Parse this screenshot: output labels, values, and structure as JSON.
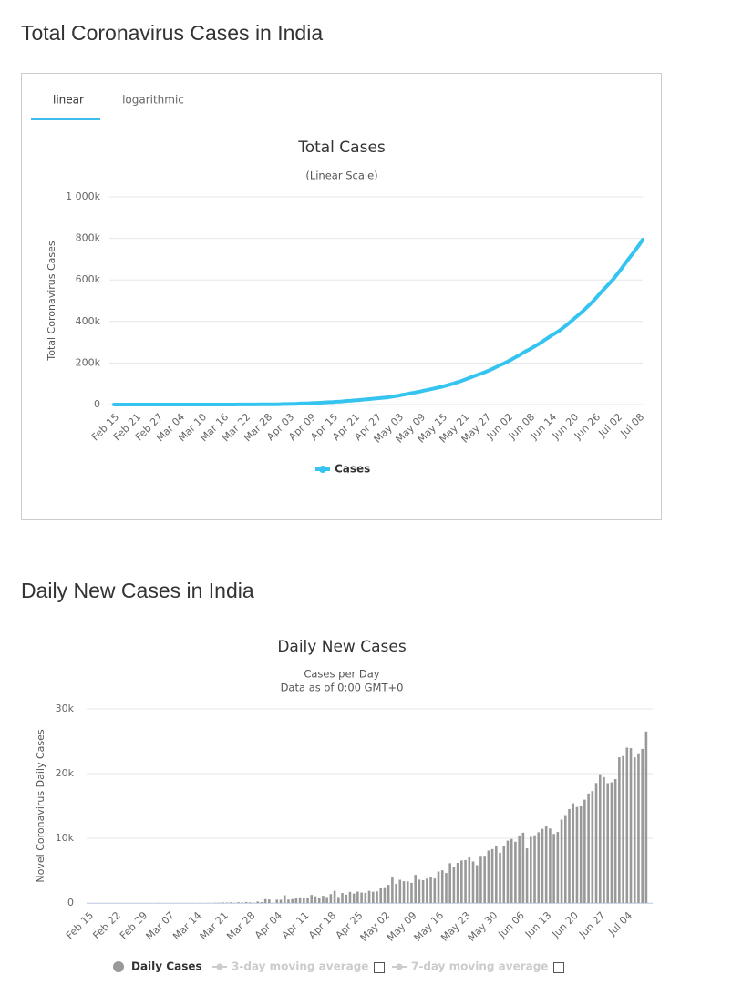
{
  "headings": [
    "Total Coronavirus Cases in India",
    "Daily New Cases in India"
  ],
  "tabs": [
    "linear",
    "logarithmic"
  ],
  "chart_data": [
    {
      "type": "line",
      "title": "Total Cases",
      "subtitle": "(Linear Scale)",
      "y_label": "Total Coronavirus Cases",
      "categories": [
        "Feb 15",
        null,
        null,
        null,
        null,
        null,
        "Feb 21",
        null,
        null,
        null,
        null,
        null,
        "Feb 27",
        null,
        null,
        null,
        null,
        null,
        "Mar 04",
        null,
        null,
        null,
        null,
        null,
        "Mar 10",
        null,
        null,
        null,
        null,
        null,
        "Mar 16",
        null,
        null,
        null,
        null,
        null,
        "Mar 22",
        null,
        null,
        null,
        null,
        null,
        "Mar 28",
        null,
        null,
        null,
        null,
        null,
        "Apr 03",
        null,
        null,
        null,
        null,
        null,
        "Apr 09",
        null,
        null,
        null,
        null,
        null,
        "Apr 15",
        null,
        null,
        null,
        null,
        null,
        "Apr 21",
        null,
        null,
        null,
        null,
        null,
        "Apr 27",
        null,
        null,
        null,
        null,
        null,
        "May 03",
        null,
        null,
        null,
        null,
        null,
        "May 09",
        null,
        null,
        null,
        null,
        null,
        "May 15",
        null,
        null,
        null,
        null,
        null,
        "May 21",
        null,
        null,
        null,
        null,
        null,
        "May 27",
        null,
        null,
        null,
        null,
        null,
        "Jun 02",
        null,
        null,
        null,
        null,
        null,
        "Jun 08",
        null,
        null,
        null,
        null,
        null,
        "Jun 14",
        null,
        null,
        null,
        null,
        null,
        "Jun 20",
        null,
        null,
        null,
        null,
        null,
        "Jun 26",
        null,
        null,
        null,
        null,
        null,
        "Jul 02",
        null,
        null,
        null,
        null,
        null,
        "Jul 08",
        null
      ],
      "series": [
        {
          "name": "Cases",
          "color": "#35c4f0",
          "values": [
            3,
            3,
            3,
            3,
            3,
            3,
            3,
            3,
            3,
            3,
            3,
            3,
            3,
            3,
            3,
            3,
            5,
            6,
            28,
            30,
            31,
            34,
            39,
            48,
            62,
            73,
            82,
            100,
            102,
            113,
            119,
            142,
            156,
            194,
            244,
            330,
            396,
            499,
            536,
            657,
            727,
            887,
            987,
            1024,
            1251,
            1397,
            1998,
            2543,
            2567,
            3082,
            3588,
            4778,
            5311,
            5916,
            6725,
            7598,
            8446,
            9205,
            10453,
            11487,
            12322,
            13430,
            14352,
            15722,
            17615,
            18539,
            20080,
            21370,
            23077,
            24530,
            26283,
            27890,
            29451,
            31324,
            33062,
            34863,
            37257,
            39699,
            42505,
            46437,
            49400,
            52987,
            56351,
            59695,
            62808,
            67161,
            70768,
            74292,
            78055,
            81997,
            85784,
            90648,
            95698,
            100328,
            106475,
            112028,
            118226,
            124794,
            131423,
            138536,
            144950,
            150793,
            158086,
            165386,
            173491,
            181827,
            190609,
            198370,
            207191,
            216824,
            226713,
            236184,
            246622,
            257486,
            265928,
            276146,
            286605,
            297535,
            308993,
            320922,
            332424,
            343091,
            354065,
            366946,
            380532,
            395048,
            410451,
            425282,
            440215,
            456183,
            473105,
            490401,
            508953,
            528859,
            548318,
            566840,
            585493,
            604641,
            627168,
            649889,
            673904,
            697836,
            720346,
            743481,
            767296,
            793802
          ]
        }
      ],
      "ylim": [
        0,
        1000000
      ],
      "yticks": [
        0,
        {
          "value": 200000,
          "label": "200k"
        },
        {
          "value": 400000,
          "label": "400k"
        },
        {
          "value": 600000,
          "label": "600k"
        },
        {
          "value": 800000,
          "label": "800k"
        },
        {
          "value": 1000000,
          "label": "1 000k"
        }
      ],
      "grid": true
    },
    {
      "type": "bar",
      "title": "Daily New Cases",
      "subtitle": [
        "Cases per Day",
        "Data as of 0:00 GMT+0"
      ],
      "y_label": "Novel Coronavirus Daily Cases",
      "categories": [
        "Feb 15",
        null,
        null,
        null,
        null,
        null,
        null,
        "Feb 22",
        null,
        null,
        null,
        null,
        null,
        null,
        "Feb 29",
        null,
        null,
        null,
        null,
        null,
        null,
        "Mar 07",
        null,
        null,
        null,
        null,
        null,
        null,
        "Mar 14",
        null,
        null,
        null,
        null,
        null,
        null,
        "Mar 21",
        null,
        null,
        null,
        null,
        null,
        null,
        "Mar 28",
        null,
        null,
        null,
        null,
        null,
        null,
        "Apr 04",
        null,
        null,
        null,
        null,
        null,
        null,
        "Apr 11",
        null,
        null,
        null,
        null,
        null,
        null,
        "Apr 18",
        null,
        null,
        null,
        null,
        null,
        null,
        "Apr 25",
        null,
        null,
        null,
        null,
        null,
        null,
        "May 02",
        null,
        null,
        null,
        null,
        null,
        null,
        "May 09",
        null,
        null,
        null,
        null,
        null,
        null,
        "May 16",
        null,
        null,
        null,
        null,
        null,
        null,
        "May 23",
        null,
        null,
        null,
        null,
        null,
        null,
        "May 30",
        null,
        null,
        null,
        null,
        null,
        null,
        "Jun 06",
        null,
        null,
        null,
        null,
        null,
        null,
        "Jun 13",
        null,
        null,
        null,
        null,
        null,
        null,
        "Jun 20",
        null,
        null,
        null,
        null,
        null,
        null,
        "Jun 27",
        null,
        null,
        null,
        null,
        null,
        null,
        "Jul 04",
        null,
        null,
        null,
        null,
        null
      ],
      "series": [
        {
          "name": "Daily Cases",
          "color": "#999999",
          "values": [
            0,
            0,
            0,
            0,
            0,
            0,
            0,
            0,
            0,
            0,
            0,
            0,
            0,
            0,
            0,
            0,
            2,
            1,
            22,
            2,
            1,
            3,
            5,
            9,
            14,
            11,
            9,
            18,
            2,
            11,
            6,
            23,
            14,
            38,
            50,
            86,
            66,
            103,
            37,
            121,
            70,
            160,
            100,
            37,
            227,
            146,
            601,
            545,
            24,
            515,
            506,
            1190,
            533,
            605,
            809,
            873,
            848,
            759,
            1248,
            1034,
            835,
            1108,
            922,
            1370,
            1893,
            924,
            1541,
            1290,
            1707,
            1453,
            1753,
            1607,
            1561,
            1873,
            1738,
            1801,
            2394,
            2442,
            2806,
            3932,
            2963,
            3587,
            3364,
            3344,
            3113,
            4353,
            3607,
            3524,
            3763,
            3942,
            3787,
            4864,
            5050,
            4630,
            6147,
            5553,
            6198,
            6568,
            6629,
            7113,
            6414,
            5843,
            7293,
            7300,
            8105,
            8336,
            8782,
            7761,
            8821,
            9633,
            9889,
            9471,
            10438,
            10864,
            8442,
            10218,
            10459,
            10930,
            11458,
            11929,
            11502,
            10667,
            10974,
            12881,
            13586,
            14516,
            15403,
            14831,
            14933,
            15968,
            16922,
            17296,
            18552,
            19906,
            19459,
            18522,
            18653,
            19148,
            22527,
            22721,
            24015,
            23932,
            22510,
            23135,
            23815,
            26506
          ]
        }
      ],
      "hidden_series": [
        "3-day moving average",
        "7-day moving average"
      ],
      "ylim": [
        0,
        30000
      ],
      "yticks": [
        0,
        {
          "value": 10000,
          "label": "10k"
        },
        {
          "value": 20000,
          "label": "20k"
        },
        {
          "value": 30000,
          "label": "30k"
        }
      ],
      "grid": true
    }
  ]
}
